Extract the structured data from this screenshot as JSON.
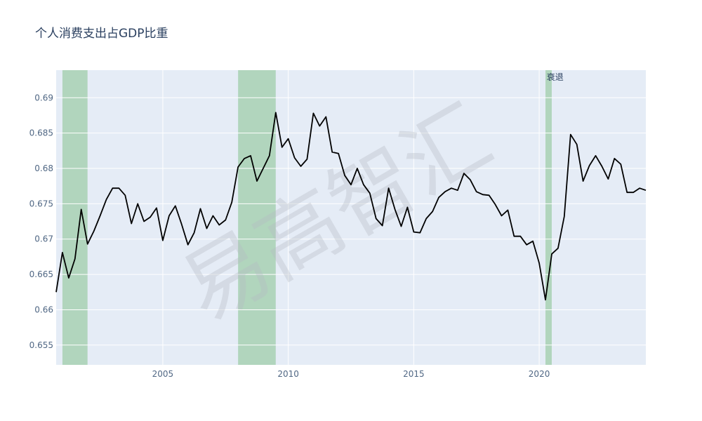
{
  "chart_data": {
    "type": "line",
    "title": "个人消费支出占GDP比重",
    "xlabel": "",
    "ylabel": "",
    "xlim": [
      2000.75,
      2024.25
    ],
    "ylim": [
      0.6522,
      0.6939
    ],
    "x_ticks": [
      2005,
      2010,
      2015,
      2020
    ],
    "x_tick_labels": [
      "2005",
      "2010",
      "2015",
      "2020"
    ],
    "y_ticks": [
      0.655,
      0.66,
      0.665,
      0.67,
      0.675,
      0.68,
      0.685,
      0.69
    ],
    "y_tick_labels": [
      "0.655",
      "0.66",
      "0.665",
      "0.67",
      "0.675",
      "0.68",
      "0.685",
      "0.69"
    ],
    "grid": true,
    "recessions": [
      {
        "start": 2001.0,
        "end": 2002.0
      },
      {
        "start": 2008.0,
        "end": 2009.5
      },
      {
        "start": 2020.25,
        "end": 2020.5
      }
    ],
    "annotation": {
      "text": "衰退",
      "x": 2020.3
    },
    "watermark": "易高智汇",
    "series": [
      {
        "color": "#000000",
        "x": [
          2000.75,
          2001.0,
          2001.25,
          2001.5,
          2001.75,
          2002.0,
          2002.25,
          2002.5,
          2002.75,
          2003.0,
          2003.25,
          2003.5,
          2003.75,
          2004.0,
          2004.25,
          2004.5,
          2004.75,
          2005.0,
          2005.25,
          2005.5,
          2005.75,
          2006.0,
          2006.25,
          2006.5,
          2006.75,
          2007.0,
          2007.25,
          2007.5,
          2007.75,
          2008.0,
          2008.25,
          2008.5,
          2008.75,
          2009.0,
          2009.25,
          2009.5,
          2009.75,
          2010.0,
          2010.25,
          2010.5,
          2010.75,
          2011.0,
          2011.25,
          2011.5,
          2011.75,
          2012.0,
          2012.25,
          2012.5,
          2012.75,
          2013.0,
          2013.25,
          2013.5,
          2013.75,
          2014.0,
          2014.25,
          2014.5,
          2014.75,
          2015.0,
          2015.25,
          2015.5,
          2015.75,
          2016.0,
          2016.25,
          2016.5,
          2016.75,
          2017.0,
          2017.25,
          2017.5,
          2017.75,
          2018.0,
          2018.25,
          2018.5,
          2018.75,
          2019.0,
          2019.25,
          2019.5,
          2019.75,
          2020.0,
          2020.25,
          2020.5,
          2020.75,
          2021.0,
          2021.25,
          2021.5,
          2021.75,
          2022.0,
          2022.25,
          2022.5,
          2022.75,
          2023.0,
          2023.25,
          2023.5,
          2023.75,
          2024.0,
          2024.25
        ],
        "y": [
          0.6625,
          0.6681,
          0.6645,
          0.6672,
          0.6742,
          0.6693,
          0.6711,
          0.6733,
          0.6756,
          0.6772,
          0.6772,
          0.6762,
          0.6722,
          0.675,
          0.6725,
          0.6731,
          0.6744,
          0.6698,
          0.6733,
          0.6747,
          0.6721,
          0.6692,
          0.6709,
          0.6743,
          0.6715,
          0.6733,
          0.672,
          0.6727,
          0.6752,
          0.6802,
          0.6814,
          0.6818,
          0.6782,
          0.68,
          0.6818,
          0.6879,
          0.683,
          0.6842,
          0.6815,
          0.6803,
          0.6813,
          0.6878,
          0.686,
          0.6873,
          0.6823,
          0.6821,
          0.679,
          0.6777,
          0.68,
          0.6777,
          0.6765,
          0.6729,
          0.6719,
          0.6772,
          0.6742,
          0.6718,
          0.6745,
          0.671,
          0.6709,
          0.6729,
          0.6739,
          0.6759,
          0.6767,
          0.6772,
          0.6769,
          0.6793,
          0.6784,
          0.6767,
          0.6763,
          0.6762,
          0.6749,
          0.6733,
          0.6741,
          0.6704,
          0.6704,
          0.6692,
          0.6697,
          0.6666,
          0.6614,
          0.6679,
          0.6687,
          0.6732,
          0.6848,
          0.6834,
          0.6782,
          0.6804,
          0.6818,
          0.6803,
          0.6785,
          0.6814,
          0.6806,
          0.6766,
          0.6766,
          0.6772,
          0.6769
        ]
      }
    ]
  }
}
